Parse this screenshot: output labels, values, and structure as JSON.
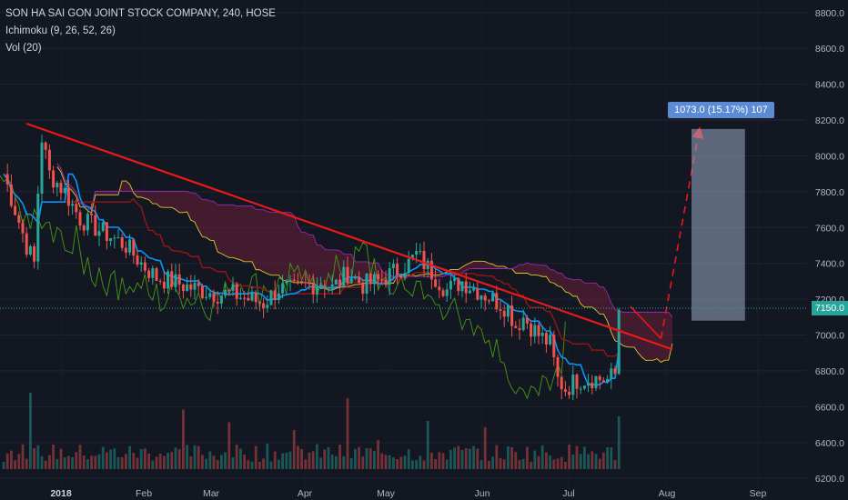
{
  "legend": {
    "title": "SON HA SAI GON JOINT STOCK COMPANY, 240, HOSE",
    "indicator1": "Ichimoku (9, 26, 52, 26)",
    "indicator2": "Vol (20)"
  },
  "price_label": "7150.0",
  "measure_label": "1073.0 (15.17%) 107",
  "colors": {
    "background": "#131722",
    "up": "#26a69a",
    "down": "#ef5350",
    "trendline": "#e81919",
    "tenkan": "#0496ff",
    "kijun": "#991515",
    "chikou": "#459915",
    "spanA": "#dcc72b",
    "spanB": "#9c27b0",
    "cloud": "#6b1f3a",
    "box": "#9aaac4"
  },
  "chart_data": {
    "type": "candlestick",
    "yaxis": {
      "ticks": [
        6200,
        6400,
        6600,
        6800,
        7000,
        7200,
        7400,
        7600,
        7800,
        8000,
        8200,
        8400,
        8600,
        8800
      ],
      "labels": [
        "6200.0",
        "6400.0",
        "6600.0",
        "6800.0",
        "7000.0",
        "7200.0",
        "7400.0",
        "7600.0",
        "7800.0",
        "8000.0",
        "8200.0",
        "8400.0",
        "8600.0",
        "8800.0"
      ],
      "ylim": [
        6140,
        8870
      ]
    },
    "xaxis": {
      "labels": [
        "2018",
        "Feb",
        "Mar",
        "Apr",
        "May",
        "Jun",
        "Jul",
        "Aug",
        "Sep"
      ],
      "bold_first": true
    },
    "last_price": 7150,
    "price_path": [
      [
        0,
        7900
      ],
      [
        3,
        7700
      ],
      [
        6,
        7500
      ],
      [
        8,
        7400
      ],
      [
        9,
        7800
      ],
      [
        10,
        8100
      ],
      [
        12,
        7900
      ],
      [
        16,
        7800
      ],
      [
        20,
        7650
      ],
      [
        24,
        7600
      ],
      [
        28,
        7550
      ],
      [
        32,
        7500
      ],
      [
        36,
        7400
      ],
      [
        40,
        7320
      ],
      [
        44,
        7300
      ],
      [
        48,
        7270
      ],
      [
        52,
        7250
      ],
      [
        56,
        7230
      ],
      [
        60,
        7230
      ],
      [
        64,
        7200
      ],
      [
        68,
        7180
      ],
      [
        72,
        7260
      ],
      [
        76,
        7250
      ],
      [
        80,
        7280
      ],
      [
        84,
        7300
      ],
      [
        86,
        7260
      ],
      [
        88,
        7300
      ],
      [
        90,
        7350
      ],
      [
        94,
        7280
      ],
      [
        98,
        7300
      ],
      [
        102,
        7350
      ],
      [
        106,
        7400
      ],
      [
        108,
        7450
      ],
      [
        112,
        7350
      ],
      [
        116,
        7250
      ],
      [
        120,
        7300
      ],
      [
        124,
        7250
      ],
      [
        128,
        7200
      ],
      [
        132,
        7150
      ],
      [
        134,
        7050
      ],
      [
        136,
        7100
      ],
      [
        140,
        7000
      ],
      [
        143,
        6950
      ],
      [
        145,
        6750
      ],
      [
        147,
        6700
      ],
      [
        150,
        6750
      ],
      [
        154,
        6760
      ],
      [
        158,
        6750
      ],
      [
        160,
        6780
      ],
      [
        161,
        7150
      ]
    ],
    "trendline": [
      [
        6,
        8180
      ],
      [
        175,
        6920
      ]
    ],
    "dashed_arrow": [
      [
        164,
        7160
      ],
      [
        172,
        6980
      ],
      [
        182,
        8140
      ]
    ],
    "measure_box": {
      "x0": 180,
      "x1": 194,
      "y_top": 8150,
      "y_bottom": 7080
    }
  }
}
